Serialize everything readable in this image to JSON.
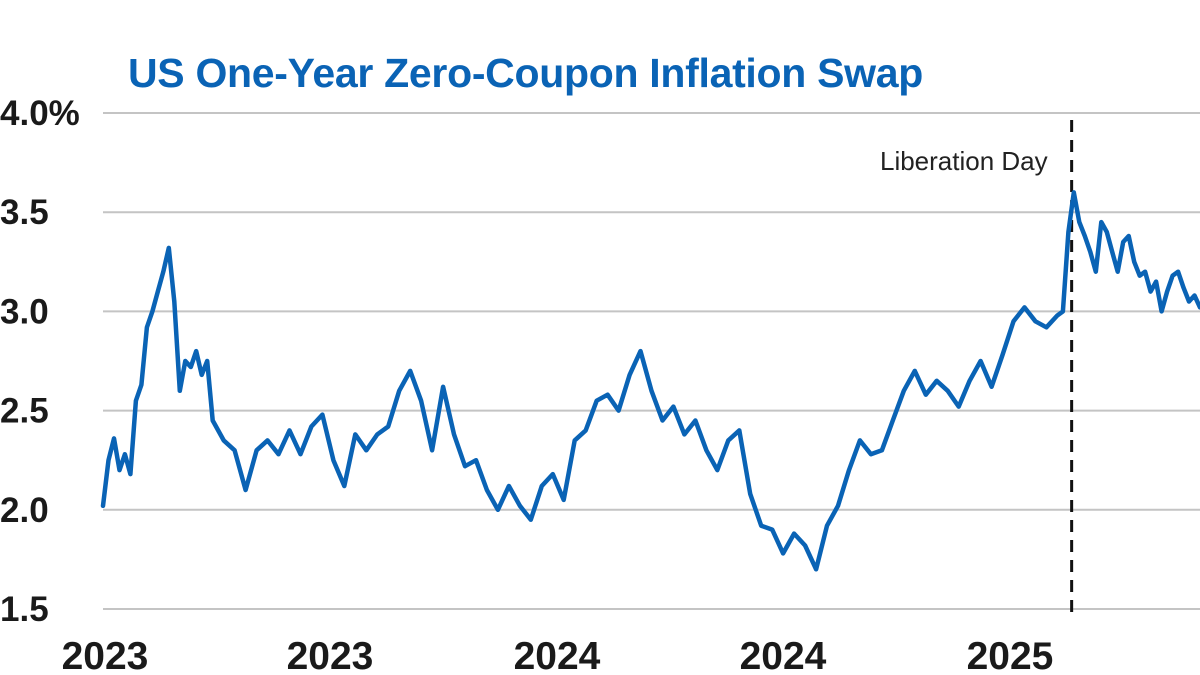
{
  "chart_data": {
    "type": "line",
    "title": "US One-Year Zero-Coupon Inflation Swap",
    "xlabel": "",
    "ylabel": "",
    "x_tick_labels": [
      "2023",
      "2023",
      "2024",
      "2024",
      "2025"
    ],
    "y_tick_labels": [
      "4.0%",
      "3.5",
      "3.0",
      "2.5",
      "2.0",
      "1.5"
    ],
    "y_tick_values": [
      4.0,
      3.5,
      3.0,
      2.5,
      2.0,
      1.5
    ],
    "ylim": [
      1.5,
      4.0
    ],
    "grid": "horizontal",
    "legend": "none",
    "annotations": [
      {
        "text": "Liberation Day",
        "x": 0.883,
        "style": "dashed-vertical-line"
      }
    ],
    "series": [
      {
        "color": "#0a63b5",
        "x": [
          0.0,
          0.005,
          0.01,
          0.015,
          0.02,
          0.025,
          0.03,
          0.035,
          0.04,
          0.045,
          0.05,
          0.055,
          0.06,
          0.065,
          0.07,
          0.075,
          0.08,
          0.085,
          0.09,
          0.095,
          0.1,
          0.11,
          0.12,
          0.13,
          0.14,
          0.15,
          0.16,
          0.17,
          0.18,
          0.19,
          0.2,
          0.21,
          0.22,
          0.23,
          0.24,
          0.25,
          0.26,
          0.27,
          0.28,
          0.29,
          0.3,
          0.31,
          0.32,
          0.33,
          0.34,
          0.35,
          0.36,
          0.37,
          0.38,
          0.39,
          0.4,
          0.41,
          0.42,
          0.43,
          0.44,
          0.45,
          0.46,
          0.47,
          0.48,
          0.49,
          0.5,
          0.51,
          0.52,
          0.53,
          0.54,
          0.55,
          0.56,
          0.57,
          0.58,
          0.59,
          0.6,
          0.61,
          0.62,
          0.63,
          0.64,
          0.65,
          0.66,
          0.67,
          0.68,
          0.69,
          0.7,
          0.71,
          0.72,
          0.73,
          0.74,
          0.75,
          0.76,
          0.77,
          0.78,
          0.79,
          0.8,
          0.81,
          0.82,
          0.83,
          0.84,
          0.85,
          0.86,
          0.87,
          0.875,
          0.88,
          0.885,
          0.89,
          0.895,
          0.9,
          0.905,
          0.91,
          0.915,
          0.92,
          0.925,
          0.93,
          0.935,
          0.94,
          0.945,
          0.95,
          0.955,
          0.96,
          0.965,
          0.97,
          0.975,
          0.98,
          0.985,
          0.99,
          0.995,
          1.0
        ],
        "values": [
          2.02,
          2.25,
          2.36,
          2.2,
          2.28,
          2.18,
          2.55,
          2.63,
          2.92,
          3.0,
          3.1,
          3.2,
          3.32,
          3.05,
          2.6,
          2.75,
          2.72,
          2.8,
          2.68,
          2.75,
          2.45,
          2.35,
          2.3,
          2.1,
          2.3,
          2.35,
          2.28,
          2.4,
          2.28,
          2.42,
          2.48,
          2.25,
          2.12,
          2.38,
          2.3,
          2.38,
          2.42,
          2.6,
          2.7,
          2.55,
          2.3,
          2.62,
          2.38,
          2.22,
          2.25,
          2.1,
          2.0,
          2.12,
          2.02,
          1.95,
          2.12,
          2.18,
          2.05,
          2.35,
          2.4,
          2.55,
          2.58,
          2.5,
          2.68,
          2.8,
          2.6,
          2.45,
          2.52,
          2.38,
          2.45,
          2.3,
          2.2,
          2.35,
          2.4,
          2.08,
          1.92,
          1.9,
          1.78,
          1.88,
          1.82,
          1.7,
          1.92,
          2.02,
          2.2,
          2.35,
          2.28,
          2.3,
          2.45,
          2.6,
          2.7,
          2.58,
          2.65,
          2.6,
          2.52,
          2.65,
          2.75,
          2.62,
          2.78,
          2.95,
          3.02,
          2.95,
          2.92,
          2.98,
          3.0,
          3.4,
          3.6,
          3.45,
          3.38,
          3.3,
          3.2,
          3.45,
          3.4,
          3.3,
          3.2,
          3.35,
          3.38,
          3.25,
          3.18,
          3.2,
          3.1,
          3.15,
          3.0,
          3.1,
          3.18,
          3.2,
          3.12,
          3.05,
          3.08,
          3.02
        ]
      }
    ]
  }
}
